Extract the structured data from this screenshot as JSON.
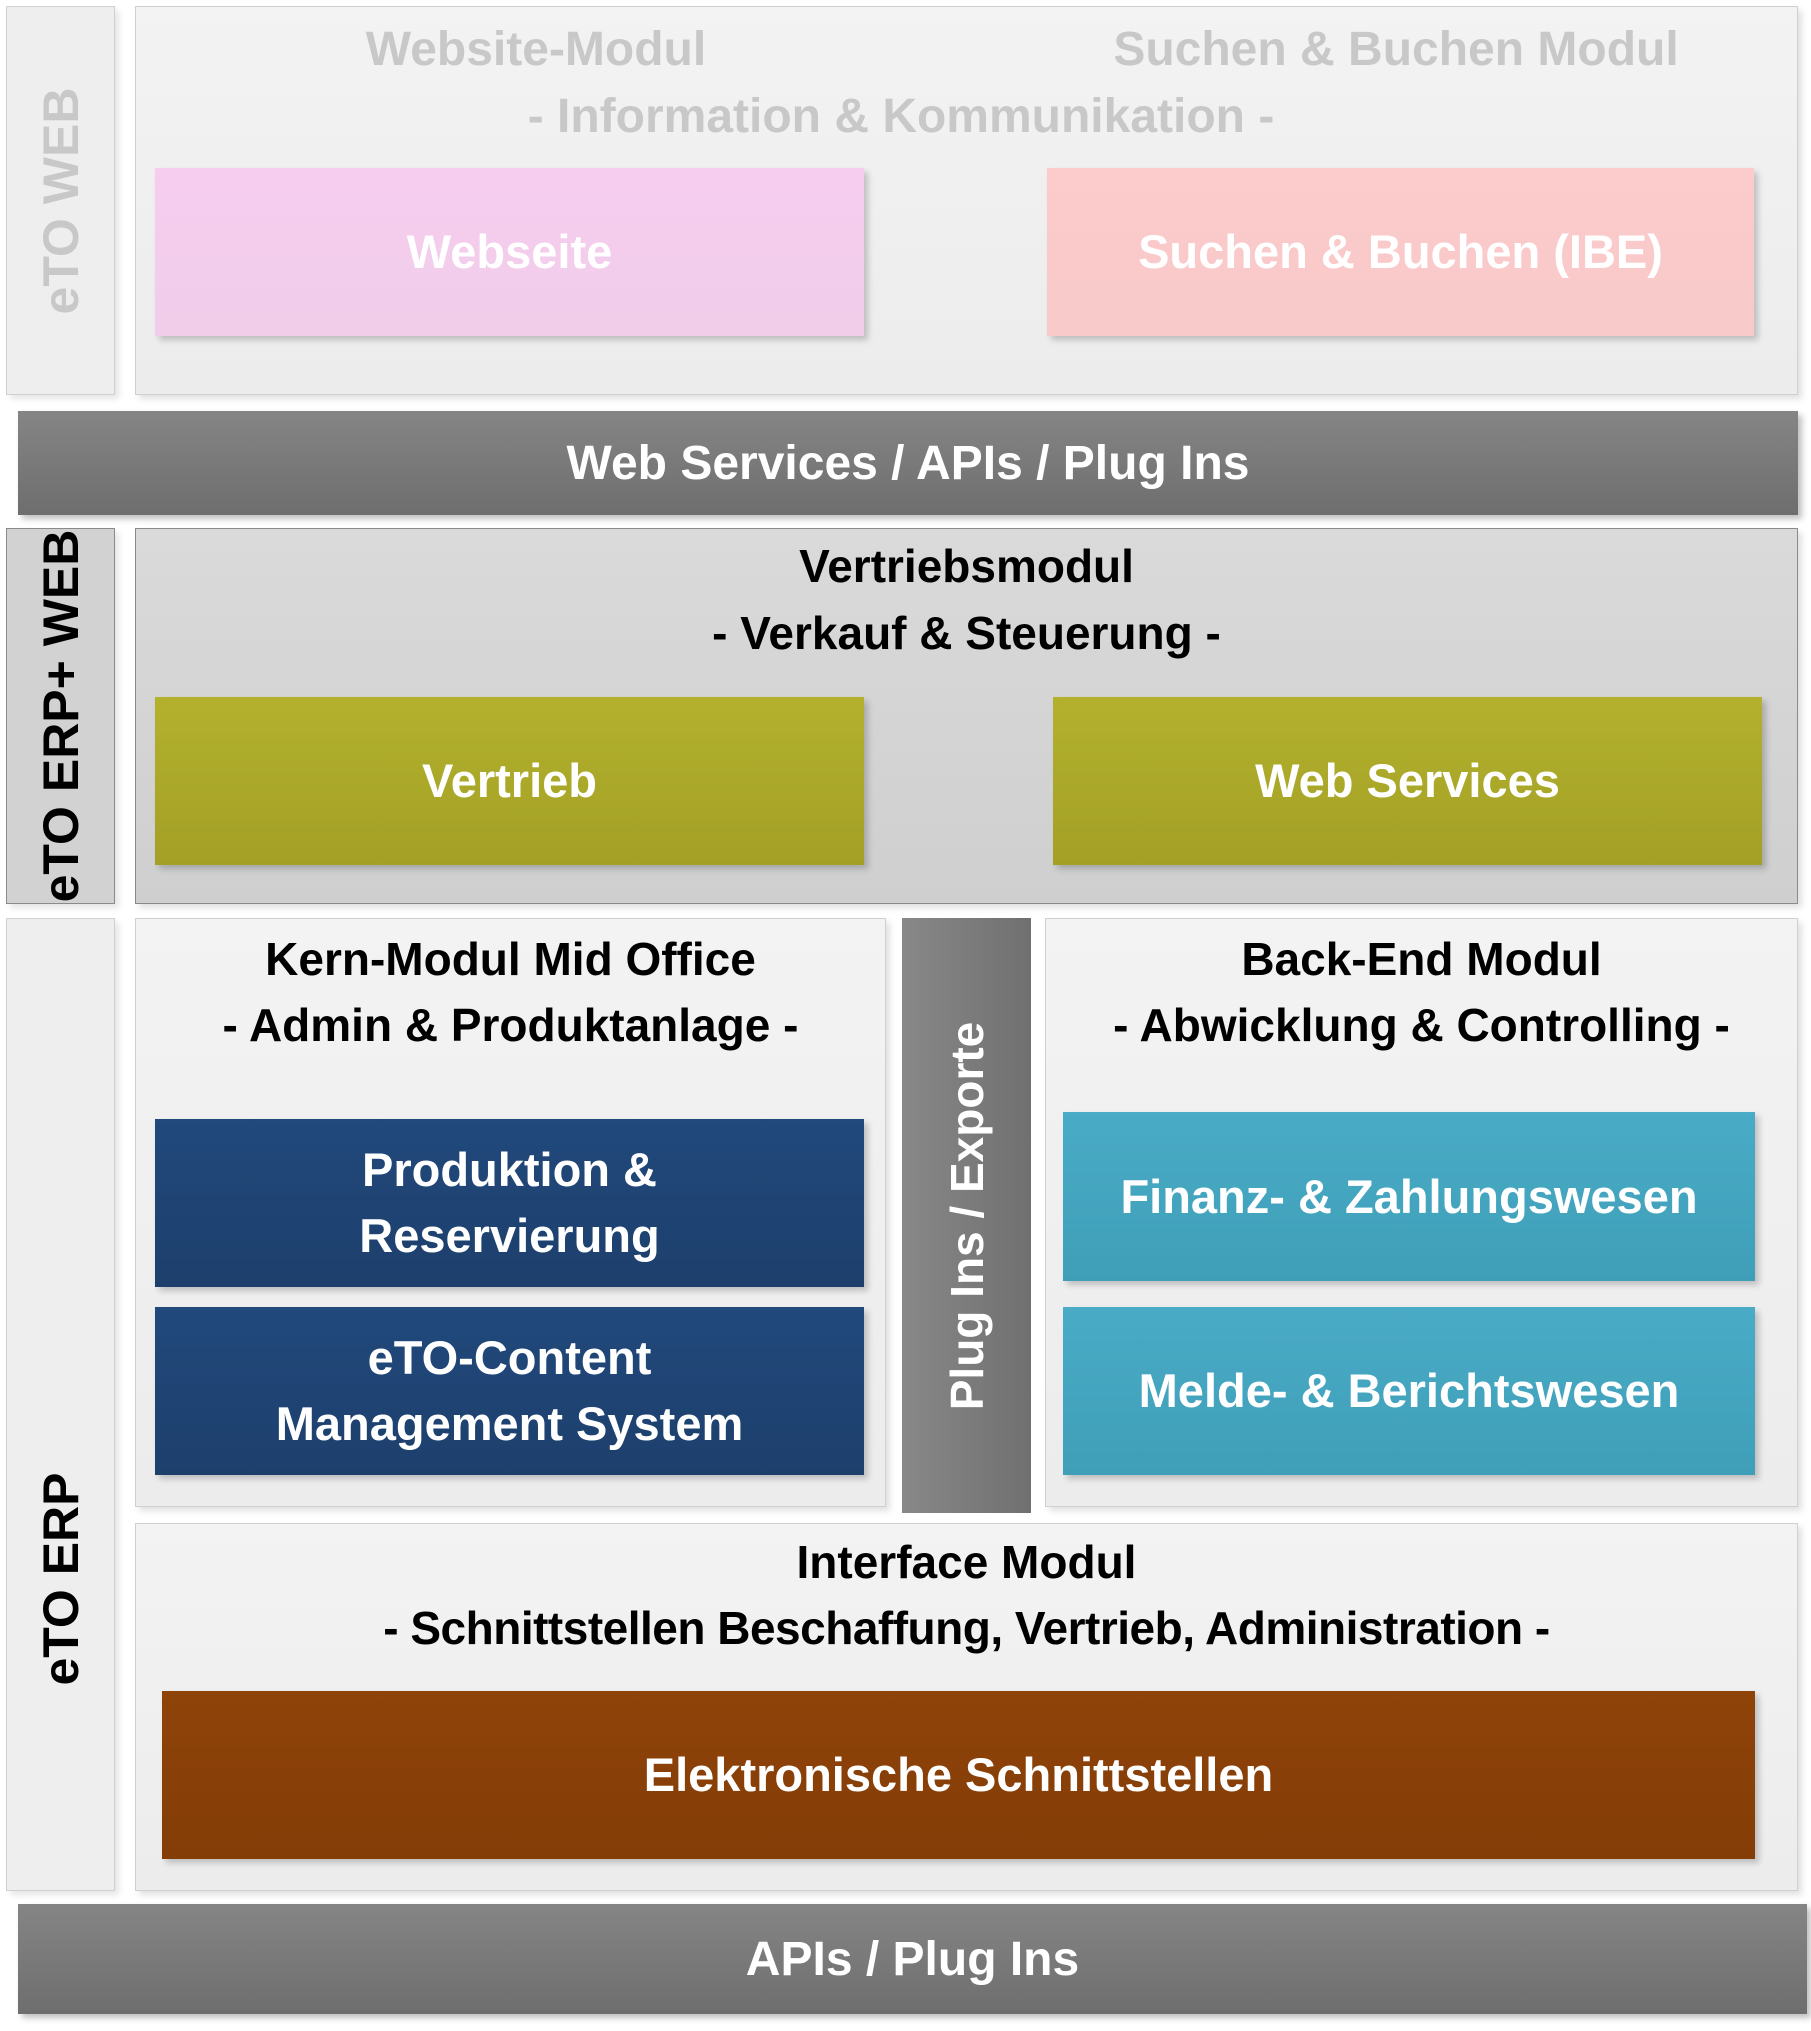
{
  "side_labels": {
    "web": "eTO WEB",
    "erp_web": "eTO ERP+ WEB",
    "erp": "eTO ERP"
  },
  "web_panel": {
    "title_left": "Website-Modul",
    "title_right": "Suchen & Buchen Modul",
    "subtitle": "- Information & Kommunikation -",
    "box_left": "Webseite",
    "box_right": "Suchen & Buchen (IBE)"
  },
  "bar_top": "Web Services / APIs / Plug Ins",
  "sales_panel": {
    "title": "Vertriebsmodul",
    "subtitle": "- Verkauf & Steuerung -",
    "box_left": "Vertrieb",
    "box_right": "Web Services"
  },
  "core_panel": {
    "title": "Kern-Modul Mid Office",
    "subtitle": "- Admin & Produktanlage -",
    "box1": [
      "Produktion &",
      "Reservierung"
    ],
    "box2": [
      "eTO-Content",
      "Management System"
    ]
  },
  "plugins_bar": "Plug Ins / Exporte",
  "backend_panel": {
    "title": "Back-End Modul",
    "subtitle": "- Abwicklung & Controlling -",
    "box1": "Finanz- & Zahlungswesen",
    "box2": "Melde- & Berichtswesen"
  },
  "interface_panel": {
    "title": "Interface Modul",
    "subtitle": "- Schnittstellen Beschaffung, Vertrieb, Administration -",
    "box": "Elektronische Schnittstellen"
  },
  "bar_bottom": "APIs / Plug Ins",
  "colors": {
    "webseite": "#f4cdee",
    "ibe": "#fbcaca",
    "vertrieb": "#aca92a",
    "kern": "#1f4677",
    "backend": "#45a7c2",
    "interface": "#8a4008",
    "bar": "#7a7a7a"
  }
}
